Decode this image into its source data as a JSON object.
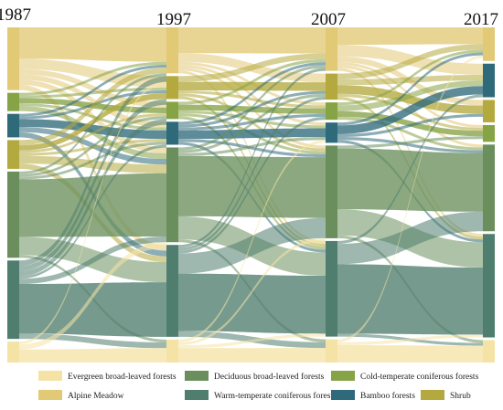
{
  "years": [
    "1987",
    "1997",
    "2007",
    "2017"
  ],
  "categories": [
    {
      "key": "evergreen",
      "name": "Evergreen broad-leaved forests",
      "color": "#f5e3a6"
    },
    {
      "key": "alpine",
      "name": "Alpine Meadow",
      "color": "#e2c976"
    },
    {
      "key": "deciduous",
      "name": "Deciduous broad-leaved forests",
      "color": "#6a8f5c"
    },
    {
      "key": "warm",
      "name": "Warm-temperate coniferous forests",
      "color": "#4f7e6e"
    },
    {
      "key": "cold",
      "name": "Cold-temperate coniferous forests",
      "color": "#86a346"
    },
    {
      "key": "bamboo",
      "name": "Bamboo forests",
      "color": "#2f6a7a"
    },
    {
      "key": "shrub",
      "name": "Shrub",
      "color": "#b4a93e"
    }
  ],
  "legend_order": [
    "evergreen",
    "deciduous",
    "cold",
    "alpine",
    "warm",
    "bamboo",
    "shrub"
  ],
  "chart_data": {
    "type": "sankey",
    "units": "relative area",
    "nodes_by_year": [
      {
        "year": "1987",
        "stack": [
          "alpine",
          "cold",
          "bamboo",
          "shrub",
          "deciduous",
          "warm",
          "evergreen"
        ],
        "values": {
          "alpine": 24,
          "cold": 7,
          "bamboo": 9,
          "shrub": 11,
          "deciduous": 33,
          "warm": 30,
          "evergreen": 8
        }
      },
      {
        "year": "1997",
        "stack": [
          "alpine",
          "shrub",
          "cold",
          "bamboo",
          "deciduous",
          "warm",
          "evergreen"
        ],
        "values": {
          "alpine": 16,
          "shrub": 8,
          "cold": 6,
          "bamboo": 8,
          "deciduous": 33,
          "warm": 32,
          "evergreen": 8
        }
      },
      {
        "year": "2007",
        "stack": [
          "alpine",
          "shrub",
          "cold",
          "bamboo",
          "deciduous",
          "warm",
          "evergreen"
        ],
        "values": {
          "alpine": 15,
          "shrub": 9,
          "cold": 6,
          "bamboo": 7,
          "deciduous": 32,
          "warm": 33,
          "evergreen": 8
        }
      },
      {
        "year": "2017",
        "stack": [
          "alpine",
          "bamboo",
          "shrub",
          "cold",
          "deciduous",
          "warm",
          "evergreen"
        ],
        "values": {
          "alpine": 12,
          "bamboo": 12,
          "shrub": 8,
          "cold": 6,
          "deciduous": 31,
          "warm": 37,
          "evergreen": 8
        }
      }
    ],
    "transitions": [
      {
        "from": "1987",
        "to": "1997",
        "flows": [
          [
            "alpine",
            "alpine",
            12
          ],
          [
            "alpine",
            "shrub",
            4
          ],
          [
            "alpine",
            "cold",
            2
          ],
          [
            "alpine",
            "bamboo",
            2
          ],
          [
            "alpine",
            "deciduous",
            2
          ],
          [
            "alpine",
            "warm",
            2
          ],
          [
            "cold",
            "cold",
            2
          ],
          [
            "cold",
            "alpine",
            1
          ],
          [
            "cold",
            "shrub",
            1
          ],
          [
            "cold",
            "bamboo",
            1
          ],
          [
            "cold",
            "deciduous",
            2
          ],
          [
            "bamboo",
            "bamboo",
            3
          ],
          [
            "bamboo",
            "alpine",
            1
          ],
          [
            "bamboo",
            "shrub",
            1
          ],
          [
            "bamboo",
            "deciduous",
            2
          ],
          [
            "bamboo",
            "warm",
            2
          ],
          [
            "shrub",
            "shrub",
            2
          ],
          [
            "shrub",
            "alpine",
            2
          ],
          [
            "shrub",
            "bamboo",
            1
          ],
          [
            "shrub",
            "deciduous",
            3
          ],
          [
            "shrub",
            "warm",
            2
          ],
          [
            "shrub",
            "cold",
            1
          ],
          [
            "deciduous",
            "deciduous",
            22
          ],
          [
            "deciduous",
            "warm",
            7
          ],
          [
            "deciduous",
            "alpine",
            1
          ],
          [
            "deciduous",
            "evergreen",
            1
          ],
          [
            "deciduous",
            "bamboo",
            1
          ],
          [
            "deciduous",
            "cold",
            1
          ],
          [
            "warm",
            "warm",
            19
          ],
          [
            "warm",
            "deciduous",
            2
          ],
          [
            "warm",
            "evergreen",
            2
          ],
          [
            "warm",
            "alpine",
            2
          ],
          [
            "warm",
            "shrub",
            2
          ],
          [
            "warm",
            "bamboo",
            1
          ],
          [
            "warm",
            "cold",
            2
          ],
          [
            "evergreen",
            "evergreen",
            5
          ],
          [
            "evergreen",
            "alpine",
            1
          ],
          [
            "evergreen",
            "deciduous",
            2
          ]
        ]
      },
      {
        "from": "1997",
        "to": "2007",
        "flows": [
          [
            "alpine",
            "alpine",
            9
          ],
          [
            "alpine",
            "shrub",
            3
          ],
          [
            "alpine",
            "cold",
            1
          ],
          [
            "alpine",
            "bamboo",
            1
          ],
          [
            "alpine",
            "deciduous",
            1
          ],
          [
            "alpine",
            "warm",
            1
          ],
          [
            "shrub",
            "shrub",
            3
          ],
          [
            "shrub",
            "alpine",
            2
          ],
          [
            "shrub",
            "cold",
            1
          ],
          [
            "shrub",
            "deciduous",
            1
          ],
          [
            "shrub",
            "warm",
            1
          ],
          [
            "cold",
            "cold",
            2
          ],
          [
            "cold",
            "alpine",
            1
          ],
          [
            "cold",
            "bamboo",
            1
          ],
          [
            "cold",
            "deciduous",
            1
          ],
          [
            "cold",
            "warm",
            1
          ],
          [
            "bamboo",
            "bamboo",
            3
          ],
          [
            "bamboo",
            "alpine",
            1
          ],
          [
            "bamboo",
            "shrub",
            1
          ],
          [
            "bamboo",
            "deciduous",
            1
          ],
          [
            "bamboo",
            "cold",
            1
          ],
          [
            "bamboo",
            "warm",
            1
          ],
          [
            "deciduous",
            "deciduous",
            21
          ],
          [
            "deciduous",
            "warm",
            8
          ],
          [
            "deciduous",
            "shrub",
            1
          ],
          [
            "deciduous",
            "alpine",
            1
          ],
          [
            "deciduous",
            "bamboo",
            1
          ],
          [
            "deciduous",
            "evergreen",
            1
          ],
          [
            "warm",
            "warm",
            20
          ],
          [
            "warm",
            "deciduous",
            7
          ],
          [
            "warm",
            "evergreen",
            2
          ],
          [
            "warm",
            "shrub",
            1
          ],
          [
            "warm",
            "cold",
            1
          ],
          [
            "warm",
            "alpine",
            1
          ],
          [
            "evergreen",
            "evergreen",
            5
          ],
          [
            "evergreen",
            "deciduous",
            1
          ],
          [
            "evergreen",
            "warm",
            1
          ],
          [
            "evergreen",
            "bamboo",
            1
          ]
        ]
      },
      {
        "from": "2007",
        "to": "2017",
        "flows": [
          [
            "alpine",
            "alpine",
            6
          ],
          [
            "alpine",
            "bamboo",
            4
          ],
          [
            "alpine",
            "shrub",
            2
          ],
          [
            "alpine",
            "cold",
            1
          ],
          [
            "alpine",
            "deciduous",
            1
          ],
          [
            "alpine",
            "warm",
            1
          ],
          [
            "shrub",
            "shrub",
            3
          ],
          [
            "shrub",
            "alpine",
            2
          ],
          [
            "shrub",
            "bamboo",
            2
          ],
          [
            "shrub",
            "cold",
            1
          ],
          [
            "shrub",
            "warm",
            1
          ],
          [
            "cold",
            "cold",
            2
          ],
          [
            "cold",
            "bamboo",
            2
          ],
          [
            "cold",
            "deciduous",
            1
          ],
          [
            "cold",
            "alpine",
            1
          ],
          [
            "bamboo",
            "bamboo",
            3
          ],
          [
            "bamboo",
            "alpine",
            1
          ],
          [
            "bamboo",
            "deciduous",
            1
          ],
          [
            "bamboo",
            "warm",
            1
          ],
          [
            "bamboo",
            "shrub",
            1
          ],
          [
            "deciduous",
            "deciduous",
            21
          ],
          [
            "deciduous",
            "warm",
            9
          ],
          [
            "deciduous",
            "cold",
            1
          ],
          [
            "deciduous",
            "evergreen",
            1
          ],
          [
            "warm",
            "warm",
            24
          ],
          [
            "warm",
            "deciduous",
            7
          ],
          [
            "warm",
            "evergreen",
            1
          ],
          [
            "warm",
            "bamboo",
            1
          ],
          [
            "evergreen",
            "evergreen",
            6
          ],
          [
            "evergreen",
            "warm",
            1
          ],
          [
            "evergreen",
            "alpine",
            1
          ]
        ]
      }
    ]
  }
}
